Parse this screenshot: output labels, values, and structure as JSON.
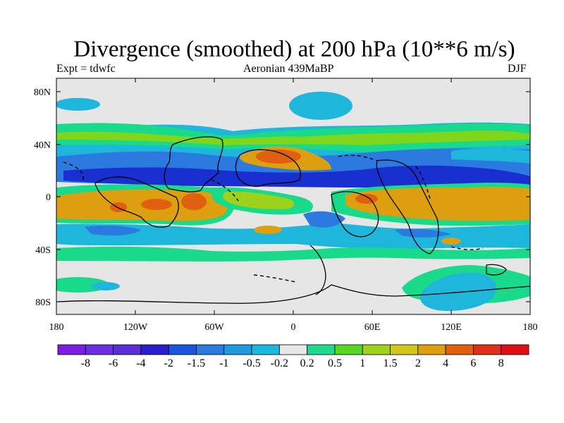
{
  "title": "Divergence (smoothed) at 200 hPa (10**6 m/s)",
  "subtitle_left": "Expt = tdwfc",
  "subtitle_center": "Aeronian 439MaBP",
  "subtitle_right": "DJF",
  "map": {
    "lat_ticks": [
      "80N",
      "40N",
      "0",
      "40S",
      "80S"
    ],
    "lon_ticks": [
      "180",
      "120W",
      "60W",
      "0",
      "60E",
      "120E",
      "180"
    ]
  },
  "colorbar": {
    "labels": [
      "-8",
      "-6",
      "-4",
      "-2",
      "-1.5",
      "-1",
      "-0.5",
      "-0.2",
      "0.2",
      "0.5",
      "1",
      "1.5",
      "2",
      "4",
      "6",
      "8"
    ],
    "colors": [
      "#7a1fe0",
      "#6a2de0",
      "#5a2fd8",
      "#2a1fd0",
      "#1a55e0",
      "#2a7ae0",
      "#1f9ae0",
      "#1ab8dc",
      "#e8e8e8",
      "#1fd88a",
      "#55d81f",
      "#9ed21a",
      "#d2c81a",
      "#dca00f",
      "#e0600f",
      "#e0301a",
      "#e00f0f"
    ]
  },
  "palette": {
    "background": "#e6e6e6",
    "blue_light": "#1fb6dc",
    "blue_mid": "#2a7ae0",
    "blue_dark": "#1a2fd0",
    "green": "#19d98a",
    "green_yellow": "#7fd61a",
    "orange": "#dc9f10",
    "red_orange": "#e06010"
  }
}
